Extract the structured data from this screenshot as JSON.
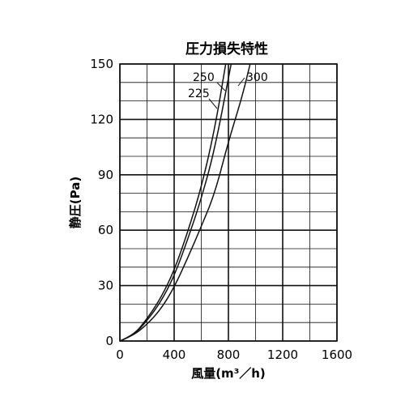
{
  "chart_data": {
    "type": "line",
    "title": "圧力損失特性",
    "xlabel": "風量(m³／h)",
    "ylabel": "静圧(Pa)",
    "xlim": [
      0,
      1600
    ],
    "ylim": [
      0,
      150
    ],
    "xticks": [
      0,
      400,
      800,
      1200,
      1600
    ],
    "yticks": [
      0,
      30,
      60,
      90,
      120,
      150
    ],
    "xtick_labels": [
      "0",
      "400",
      "800",
      "1200",
      "1600"
    ],
    "ytick_labels": [
      "0",
      "30",
      "60",
      "90",
      "120",
      "150"
    ],
    "x_minor_step": 200,
    "y_minor_step": 10,
    "grid": true,
    "legend": "none",
    "series": [
      {
        "name": "225",
        "x": [
          0,
          100,
          200,
          300,
          400,
          500,
          600,
          700,
          780
        ],
        "y": [
          0,
          3,
          12,
          23,
          38,
          59,
          83,
          115,
          150
        ]
      },
      {
        "name": "250",
        "x": [
          0,
          100,
          200,
          300,
          400,
          500,
          600,
          700,
          820
        ],
        "y": [
          0,
          3,
          11,
          21,
          35,
          55,
          77,
          104,
          150
        ]
      },
      {
        "name": "300",
        "x": [
          0,
          100,
          200,
          300,
          400,
          500,
          600,
          700,
          800,
          900,
          960
        ],
        "y": [
          0,
          3,
          9,
          17,
          29,
          45,
          62,
          80,
          108,
          132,
          150
        ]
      }
    ],
    "series_labels": [
      "225",
      "250",
      "300"
    ]
  }
}
